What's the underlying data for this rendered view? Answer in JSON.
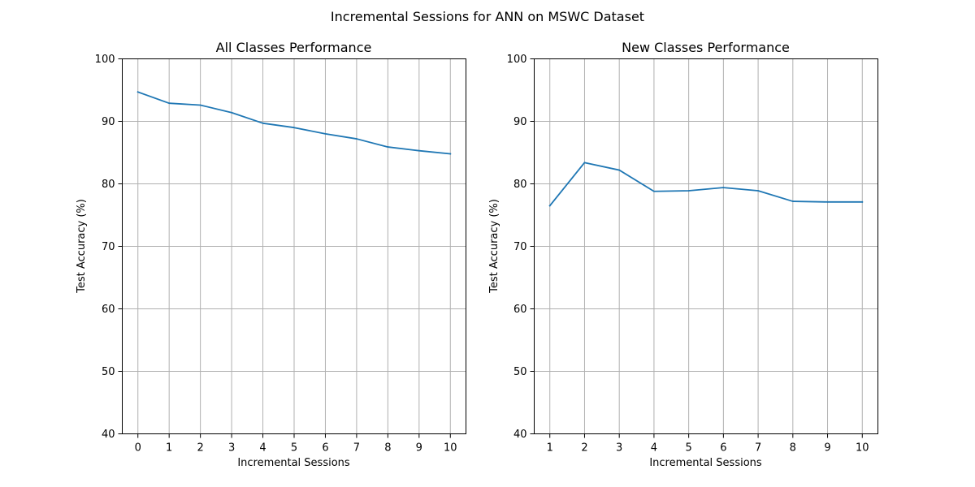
{
  "figure": {
    "title": "Incremental Sessions for ANN on MSWC Dataset"
  },
  "colors": {
    "line": "#1f77b4",
    "grid": "#b0b0b0",
    "background": "#ffffff"
  },
  "chart_data": [
    {
      "type": "line",
      "title": "All Classes Performance",
      "xlabel": "Incremental Sessions",
      "ylabel": "Test Accuracy (%)",
      "x": [
        0,
        1,
        2,
        3,
        4,
        5,
        6,
        7,
        8,
        9,
        10
      ],
      "xticks": [
        0,
        1,
        2,
        3,
        4,
        5,
        6,
        7,
        8,
        9,
        10
      ],
      "xlim": [
        -0.5,
        10.5
      ],
      "ylim": [
        40,
        100
      ],
      "yticks": [
        40,
        50,
        60,
        70,
        80,
        90,
        100
      ],
      "grid": true,
      "series": [
        {
          "values": [
            94.7,
            92.9,
            92.6,
            91.4,
            89.7,
            89.0,
            88.0,
            87.2,
            85.9,
            85.3,
            84.8
          ]
        }
      ]
    },
    {
      "type": "line",
      "title": "New Classes Performance",
      "xlabel": "Incremental Sessions",
      "ylabel": "Test Accuracy (%)",
      "x": [
        1,
        2,
        3,
        4,
        5,
        6,
        7,
        8,
        9,
        10
      ],
      "xticks": [
        1,
        2,
        3,
        4,
        5,
        6,
        7,
        8,
        9,
        10
      ],
      "xlim": [
        0.55,
        10.45
      ],
      "ylim": [
        40,
        100
      ],
      "yticks": [
        40,
        50,
        60,
        70,
        80,
        90,
        100
      ],
      "grid": true,
      "series": [
        {
          "values": [
            76.5,
            83.4,
            82.2,
            78.8,
            78.9,
            79.4,
            78.9,
            77.2,
            77.1,
            77.1
          ]
        }
      ]
    }
  ]
}
